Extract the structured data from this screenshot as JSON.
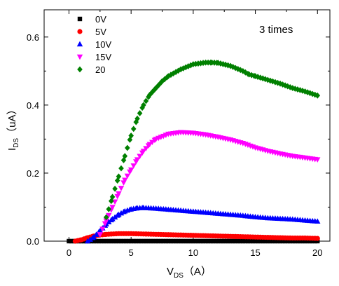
{
  "chart_data": {
    "type": "scatter",
    "annotation": "3 times",
    "xlabel": {
      "main": "V",
      "sub": "DS",
      "unit": "（A）"
    },
    "ylabel": {
      "main": "I",
      "sub": "DS",
      "unit": "（uA）"
    },
    "xlim": [
      -2,
      21
    ],
    "ylim": [
      0,
      0.68
    ],
    "xticks": [
      0,
      5,
      10,
      15,
      20
    ],
    "xtick_labels": [
      "0",
      "5",
      "10",
      "15",
      "20"
    ],
    "yticks": [
      0.0,
      0.2,
      0.4,
      0.6
    ],
    "ytick_labels": [
      "0.0",
      "0.2",
      "0.4",
      "0.6"
    ],
    "legend_position": "top-left",
    "series": [
      {
        "name": "0V",
        "color": "#000000",
        "marker": "square",
        "x": [
          0,
          1,
          2,
          3,
          4,
          5,
          6,
          7,
          8,
          9,
          10,
          11,
          12,
          13,
          14,
          15,
          16,
          17,
          18,
          19,
          20
        ],
        "y": [
          0,
          0,
          0,
          0,
          0,
          0,
          0,
          0,
          0,
          0,
          0,
          0,
          0,
          0,
          0,
          0,
          0,
          0,
          0,
          0,
          0
        ]
      },
      {
        "name": "5V",
        "color": "#ff0000",
        "marker": "circle",
        "x": [
          0.5,
          1,
          1.5,
          2,
          2.5,
          3,
          4,
          5,
          6,
          7,
          8,
          9,
          10,
          11,
          12,
          13,
          14,
          15,
          16,
          17,
          18,
          19,
          20
        ],
        "y": [
          0.0,
          0.004,
          0.01,
          0.015,
          0.018,
          0.02,
          0.022,
          0.022,
          0.021,
          0.02,
          0.019,
          0.018,
          0.017,
          0.016,
          0.015,
          0.014,
          0.013,
          0.012,
          0.011,
          0.01,
          0.009,
          0.009,
          0.008
        ]
      },
      {
        "name": "10V",
        "color": "#0000ff",
        "marker": "triangle-up",
        "x": [
          1.5,
          2,
          2.5,
          3,
          3.5,
          4,
          4.5,
          5,
          5.5,
          6,
          7,
          8,
          9,
          10,
          11,
          12,
          13,
          14,
          15,
          16,
          17,
          18,
          19,
          20
        ],
        "y": [
          0.0,
          0.012,
          0.03,
          0.05,
          0.065,
          0.078,
          0.088,
          0.094,
          0.097,
          0.098,
          0.096,
          0.093,
          0.09,
          0.087,
          0.084,
          0.081,
          0.078,
          0.075,
          0.071,
          0.068,
          0.066,
          0.064,
          0.061,
          0.058
        ]
      },
      {
        "name": "15V",
        "color": "#ff00ff",
        "marker": "triangle-down",
        "x": [
          2.5,
          3,
          3.5,
          4,
          4.5,
          5,
          5.5,
          6,
          6.5,
          7,
          8,
          9,
          10,
          11,
          12,
          13,
          14,
          15,
          16,
          17,
          18,
          19,
          20
        ],
        "y": [
          0.02,
          0.06,
          0.1,
          0.14,
          0.18,
          0.21,
          0.24,
          0.265,
          0.285,
          0.3,
          0.315,
          0.32,
          0.318,
          0.313,
          0.306,
          0.298,
          0.288,
          0.275,
          0.265,
          0.257,
          0.25,
          0.245,
          0.24
        ]
      },
      {
        "name": "20",
        "color": "#008000",
        "marker": "diamond",
        "x": [
          3,
          3.5,
          4,
          4.5,
          5,
          5.5,
          6,
          6.5,
          7,
          7.5,
          8,
          9,
          10,
          11,
          11.5,
          12,
          13,
          14,
          14.5,
          15,
          16,
          17,
          18,
          19,
          20
        ],
        "y": [
          0.07,
          0.13,
          0.19,
          0.25,
          0.31,
          0.36,
          0.4,
          0.43,
          0.45,
          0.47,
          0.485,
          0.505,
          0.52,
          0.525,
          0.525,
          0.524,
          0.515,
          0.5,
          0.49,
          0.485,
          0.474,
          0.463,
          0.45,
          0.44,
          0.428
        ]
      }
    ]
  }
}
